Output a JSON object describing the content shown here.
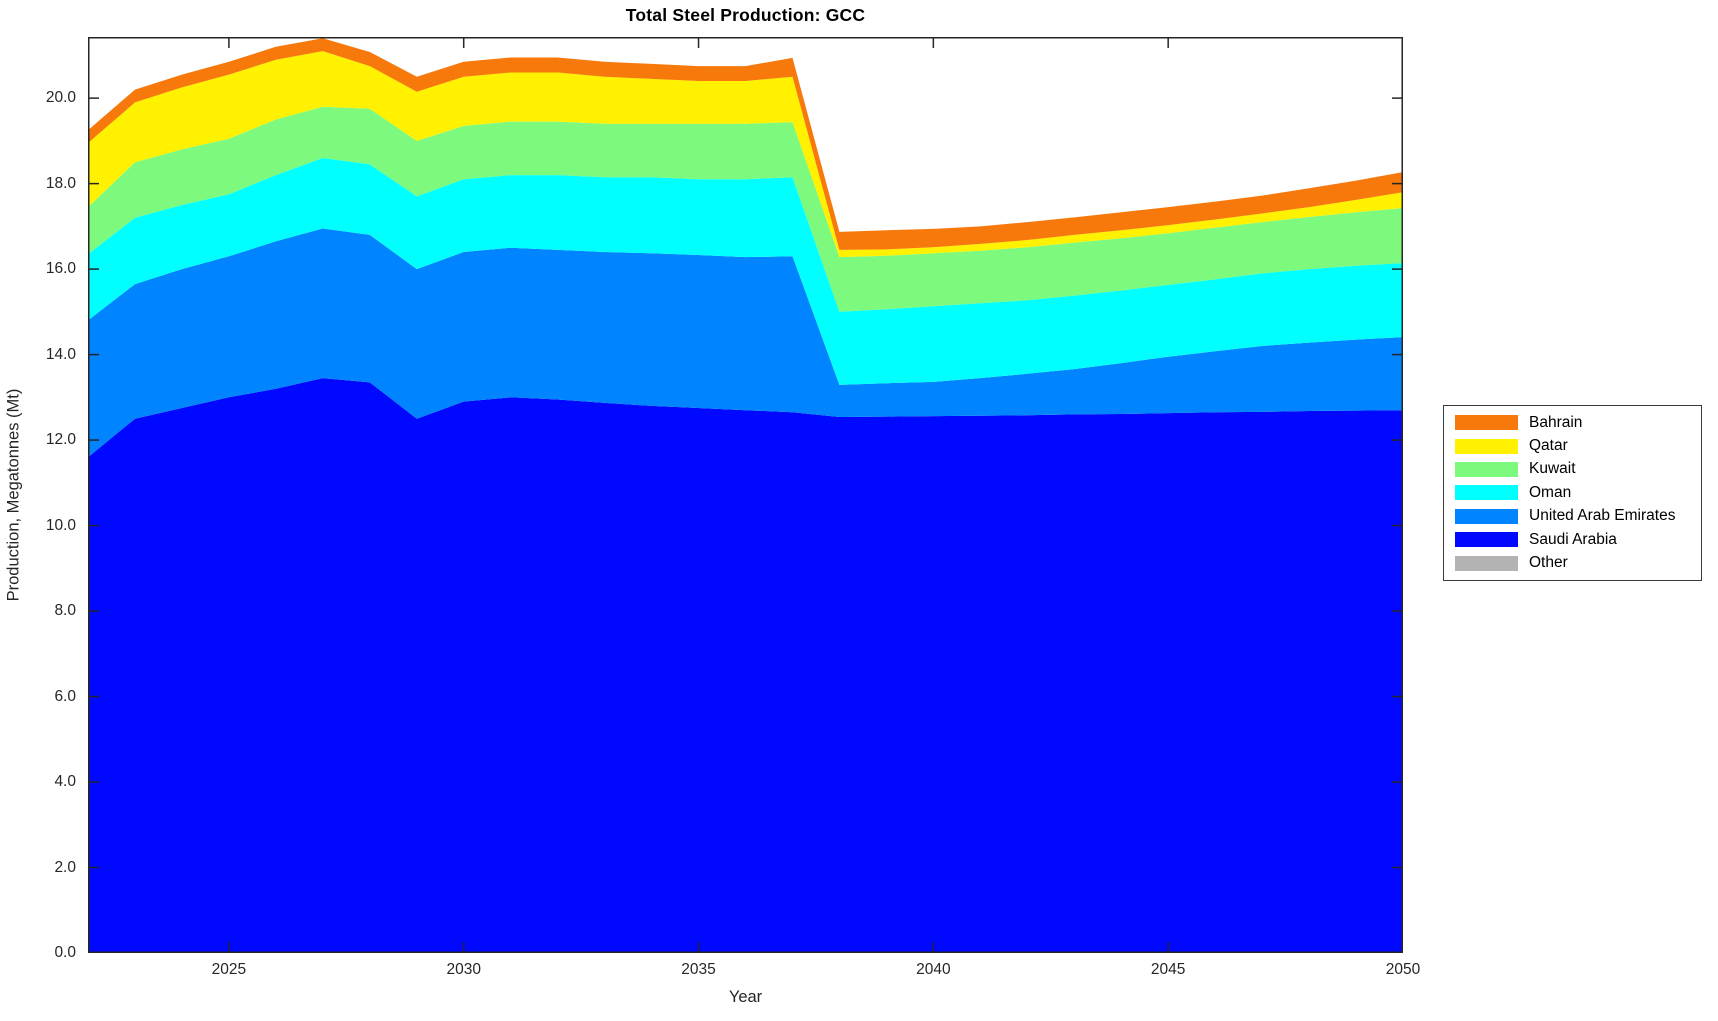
{
  "chart_data": {
    "type": "area",
    "stacked": true,
    "title": "Total Steel Production: GCC",
    "xlabel": "Year",
    "ylabel": "Production, Megatonnes (Mt)",
    "xlim": [
      2022,
      2050
    ],
    "ylim": [
      0,
      21.43
    ],
    "grid": false,
    "x": [
      2022,
      2023,
      2024,
      2025,
      2026,
      2027,
      2028,
      2029,
      2030,
      2031,
      2032,
      2033,
      2034,
      2035,
      2036,
      2037,
      2038,
      2039,
      2040,
      2041,
      2042,
      2043,
      2044,
      2045,
      2046,
      2047,
      2048,
      2049,
      2050
    ],
    "series": [
      {
        "name": "Saudi Arabia",
        "color": "#0008FF",
        "values": [
          11.6,
          12.5,
          12.75,
          13.0,
          13.2,
          13.45,
          13.35,
          12.5,
          12.9,
          13.0,
          12.95,
          12.87,
          12.8,
          12.75,
          12.7,
          12.65,
          12.54,
          12.55,
          12.56,
          12.57,
          12.58,
          12.6,
          12.61,
          12.63,
          12.65,
          12.66,
          12.68,
          12.69,
          12.7
        ]
      },
      {
        "name": "United Arab Emirates",
        "color": "#0084FF",
        "values": [
          3.2,
          3.15,
          3.25,
          3.3,
          3.45,
          3.5,
          3.45,
          3.5,
          3.5,
          3.5,
          3.5,
          3.53,
          3.57,
          3.58,
          3.58,
          3.65,
          0.75,
          0.78,
          0.8,
          0.88,
          0.97,
          1.06,
          1.19,
          1.32,
          1.43,
          1.54,
          1.6,
          1.66,
          1.71
        ]
      },
      {
        "name": "Oman",
        "color": "#00FFFF",
        "values": [
          1.55,
          1.55,
          1.5,
          1.45,
          1.55,
          1.65,
          1.65,
          1.7,
          1.7,
          1.7,
          1.75,
          1.75,
          1.78,
          1.77,
          1.82,
          1.85,
          1.71,
          1.73,
          1.77,
          1.75,
          1.72,
          1.72,
          1.7,
          1.68,
          1.68,
          1.7,
          1.72,
          1.73,
          1.73
        ]
      },
      {
        "name": "Kuwait",
        "color": "#7DF97D",
        "values": [
          1.1,
          1.3,
          1.3,
          1.3,
          1.3,
          1.2,
          1.3,
          1.3,
          1.25,
          1.25,
          1.25,
          1.25,
          1.25,
          1.3,
          1.3,
          1.29,
          1.28,
          1.25,
          1.24,
          1.23,
          1.24,
          1.24,
          1.22,
          1.21,
          1.21,
          1.2,
          1.22,
          1.25,
          1.29
        ]
      },
      {
        "name": "Qatar",
        "color": "#FFF100",
        "values": [
          1.5,
          1.4,
          1.45,
          1.5,
          1.4,
          1.3,
          1.0,
          1.15,
          1.15,
          1.15,
          1.15,
          1.1,
          1.05,
          1.0,
          1.0,
          1.06,
          0.17,
          0.15,
          0.14,
          0.16,
          0.17,
          0.18,
          0.19,
          0.19,
          0.19,
          0.2,
          0.23,
          0.29,
          0.37
        ]
      },
      {
        "name": "Bahrain",
        "color": "#F8790B",
        "values": [
          0.3,
          0.3,
          0.3,
          0.3,
          0.3,
          0.3,
          0.33,
          0.35,
          0.35,
          0.35,
          0.35,
          0.35,
          0.35,
          0.35,
          0.35,
          0.44,
          0.42,
          0.45,
          0.43,
          0.41,
          0.42,
          0.41,
          0.42,
          0.42,
          0.42,
          0.42,
          0.44,
          0.45,
          0.47
        ]
      },
      {
        "name": "Other",
        "color": "#B3B3B3",
        "values": [
          0,
          0,
          0,
          0,
          0,
          0,
          0,
          0,
          0,
          0,
          0,
          0,
          0,
          0,
          0,
          0,
          0,
          0,
          0,
          0,
          0,
          0,
          0,
          0,
          0,
          0,
          0,
          0,
          0
        ]
      }
    ],
    "xticks": {
      "values": [
        2025,
        2030,
        2035,
        2040,
        2045,
        2050
      ],
      "labels": [
        "2025",
        "2030",
        "2035",
        "2040",
        "2045",
        "2050"
      ]
    },
    "yticks": {
      "values": [
        0,
        2,
        4,
        6,
        8,
        10,
        12,
        14,
        16,
        18,
        20
      ],
      "labels": [
        "0.0",
        "2.0",
        "4.0",
        "6.0",
        "8.0",
        "10.0",
        "12.0",
        "14.0",
        "16.0",
        "18.0",
        "20.0"
      ]
    },
    "legend": {
      "position": "right-outside",
      "items": [
        {
          "label": "Bahrain",
          "color": "#F8790B"
        },
        {
          "label": "Qatar",
          "color": "#FFF100"
        },
        {
          "label": "Kuwait",
          "color": "#7DF97D"
        },
        {
          "label": "Oman",
          "color": "#00FFFF"
        },
        {
          "label": "United Arab Emirates",
          "color": "#0084FF"
        },
        {
          "label": "Saudi Arabia",
          "color": "#0008FF"
        },
        {
          "label": "Other",
          "color": "#B3B3B3"
        }
      ]
    },
    "axis_color": "#262626"
  }
}
